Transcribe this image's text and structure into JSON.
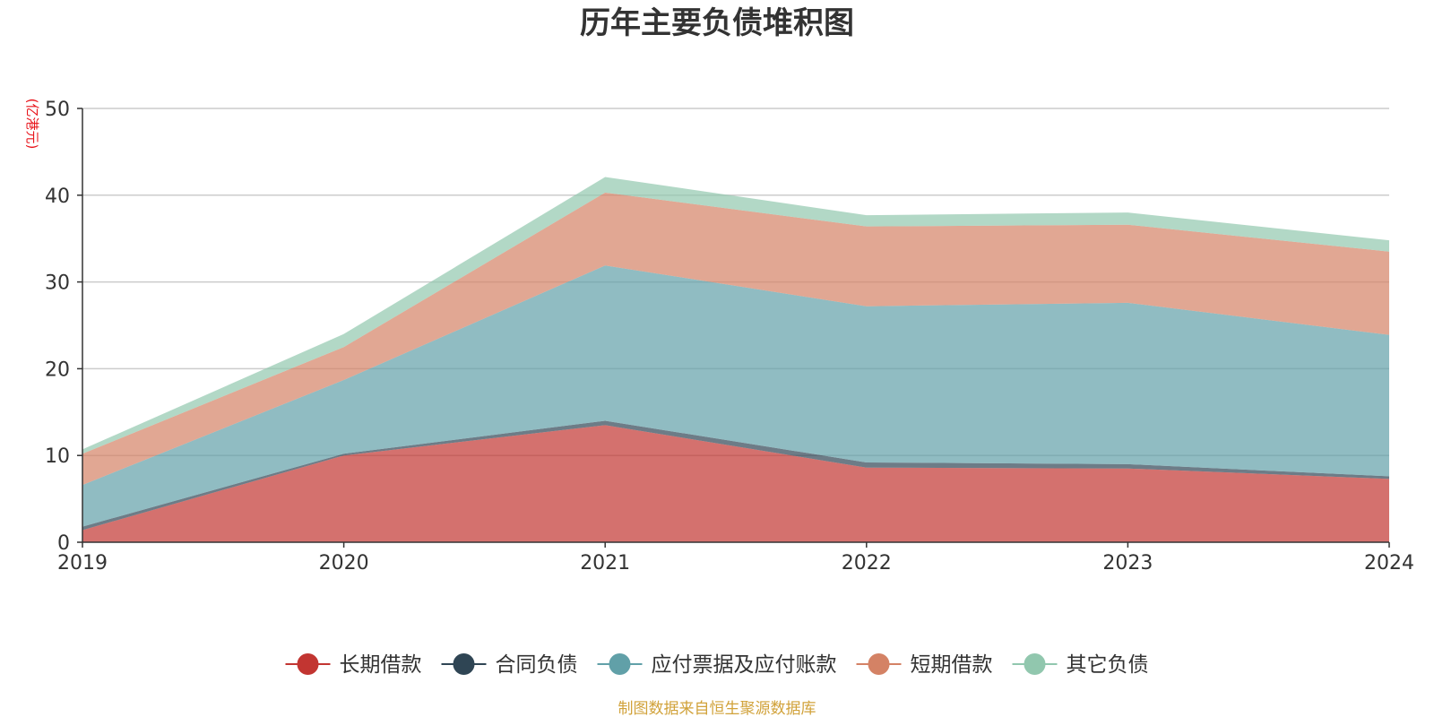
{
  "chart_data": {
    "type": "area",
    "stacked": true,
    "title": "历年主要负债堆积图",
    "ylabel": "(亿港元)",
    "xlabel": "",
    "categories": [
      "2019",
      "2020",
      "2021",
      "2022",
      "2023",
      "2024"
    ],
    "ylim": [
      0,
      50
    ],
    "yticks": [
      0,
      10,
      20,
      30,
      40,
      50
    ],
    "grid": true,
    "legend_position": "bottom",
    "series": [
      {
        "name": "长期借款",
        "color": "#c23531",
        "values": [
          1.4,
          10.0,
          13.5,
          8.6,
          8.5,
          7.3
        ]
      },
      {
        "name": "合同负债",
        "color": "#2f4554",
        "values": [
          0.4,
          0.2,
          0.5,
          0.6,
          0.5,
          0.3
        ]
      },
      {
        "name": "应付票据及应付账款",
        "color": "#61a0a8",
        "values": [
          4.8,
          8.5,
          17.9,
          18.0,
          18.6,
          16.3
        ]
      },
      {
        "name": "短期借款",
        "color": "#d48265",
        "values": [
          3.6,
          3.8,
          8.4,
          9.2,
          9.0,
          9.6
        ]
      },
      {
        "name": "其它负债",
        "color": "#91c7ae",
        "values": [
          0.5,
          1.5,
          1.8,
          1.3,
          1.4,
          1.3
        ]
      }
    ],
    "source_note": "制图数据来自恒生聚源数据库"
  }
}
